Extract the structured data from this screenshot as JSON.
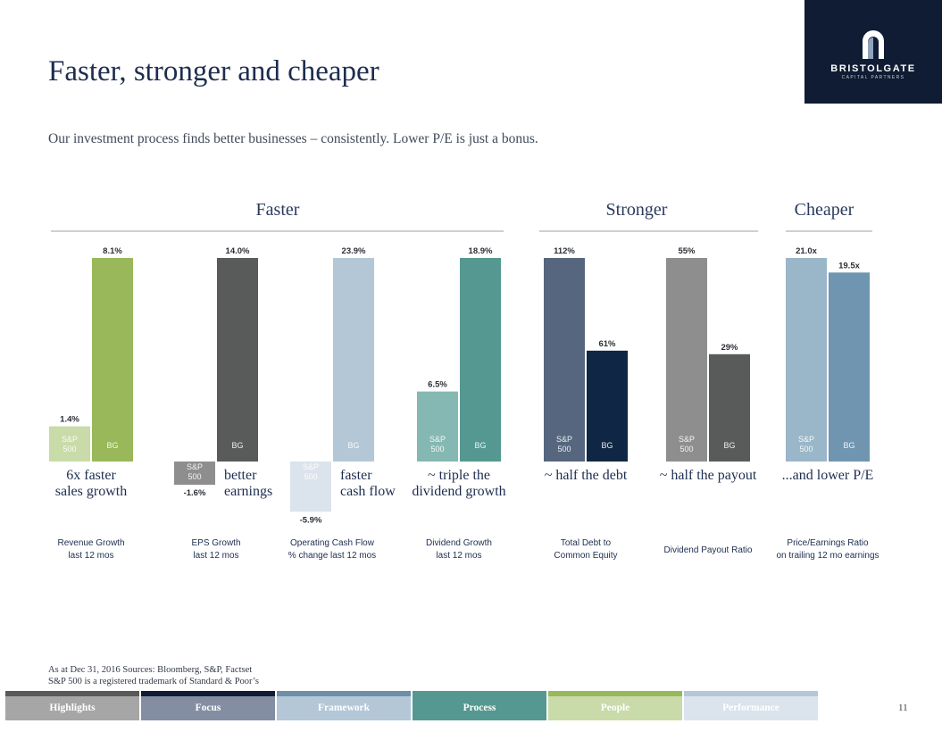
{
  "slide": {
    "title": "Faster, stronger and cheaper",
    "subtitle": "Our investment process finds better businesses – consistently. Lower P/E is just a bonus.",
    "page_number": "11"
  },
  "logo": {
    "name": "BRISTOLGATE",
    "tagline": "CAPITAL PARTNERS",
    "icon": "arch-icon",
    "background": "#0f1c33"
  },
  "footnote": {
    "line1": "As at Dec 31, 2016 Sources: Bloomberg, S&P, Factset",
    "line2": "S&P 500 is a registered trademark of Standard & Poor’s"
  },
  "footer_tabs": [
    {
      "label": "Highlights",
      "body_color": "#a6a6a6",
      "strip_color": "#595959",
      "text_color": "#ffffff"
    },
    {
      "label": "Focus",
      "body_color": "#838ea3",
      "strip_color": "#0f1c33",
      "text_color": "#ffffff"
    },
    {
      "label": "Framework",
      "body_color": "#b3c7d7",
      "strip_color": "#6f8fa8",
      "text_color": "#ffffff"
    },
    {
      "label": "Process",
      "body_color": "#559891",
      "strip_color": "#559891",
      "text_color": "#ffffff"
    },
    {
      "label": "People",
      "body_color": "#c8dba8",
      "strip_color": "#98b85a",
      "text_color": "#ffffff"
    },
    {
      "label": "Performance",
      "body_color": "#dbe4ec",
      "strip_color": "#b3c7d7",
      "text_color": "#ffffff"
    }
  ],
  "chart_data": {
    "type": "bar",
    "sections": [
      {
        "name": "Faster",
        "panels": [
          0,
          1,
          2,
          3
        ]
      },
      {
        "name": "Stronger",
        "panels": [
          4,
          5
        ]
      },
      {
        "name": "Cheaper",
        "panels": [
          6
        ]
      }
    ],
    "bar_labels": [
      "S&P\n500",
      "BG"
    ],
    "panels": [
      {
        "category": "Revenue Growth\nlast 12 mos",
        "caption": "6x faster\nsales growth",
        "unit": "%",
        "values": [
          1.4,
          8.1
        ],
        "value_labels": [
          "1.4%",
          "8.1%"
        ],
        "colors": [
          "#c8dba8",
          "#98b85a"
        ]
      },
      {
        "category": "EPS Growth\nlast 12 mos",
        "caption": "better\nearnings",
        "unit": "%",
        "values": [
          -1.6,
          14.0
        ],
        "value_labels": [
          "-1.6%",
          "14.0%"
        ],
        "colors": [
          "#8e8e8e",
          "#595b5b"
        ]
      },
      {
        "category": "Operating Cash Flow\n% change last 12 mos",
        "caption": "faster\ncash flow",
        "unit": "%",
        "values": [
          -5.9,
          23.9
        ],
        "value_labels": [
          "-5.9%",
          "23.9%"
        ],
        "colors": [
          "#dbe4ec",
          "#b3c7d7"
        ]
      },
      {
        "category": "Dividend Growth\nlast 12 mos",
        "caption": "~ triple the\ndividend growth",
        "unit": "%",
        "values": [
          6.5,
          18.9
        ],
        "value_labels": [
          "6.5%",
          "18.9%"
        ],
        "colors": [
          "#85b8b2",
          "#559891"
        ]
      },
      {
        "category": "Total Debt to\nCommon Equity",
        "caption": "~ half the debt",
        "unit": "%",
        "values": [
          112,
          61
        ],
        "value_labels": [
          "112%",
          "61%"
        ],
        "colors": [
          "#55667e",
          "#0f2744"
        ]
      },
      {
        "category": "Dividend  Payout Ratio",
        "caption": "~ half the payout",
        "unit": "%",
        "values": [
          55,
          29
        ],
        "value_labels": [
          "55%",
          "29%"
        ],
        "colors": [
          "#8e8e8e",
          "#595b5b"
        ]
      },
      {
        "category": "Price/Earnings Ratio\non trailing 12 mo earnings",
        "caption": "...and lower P/E",
        "unit": "x",
        "values": [
          21.0,
          19.5
        ],
        "value_labels": [
          "21.0x",
          "19.5x"
        ],
        "colors": [
          "#9ab6c9",
          "#6f95b0"
        ]
      }
    ]
  }
}
